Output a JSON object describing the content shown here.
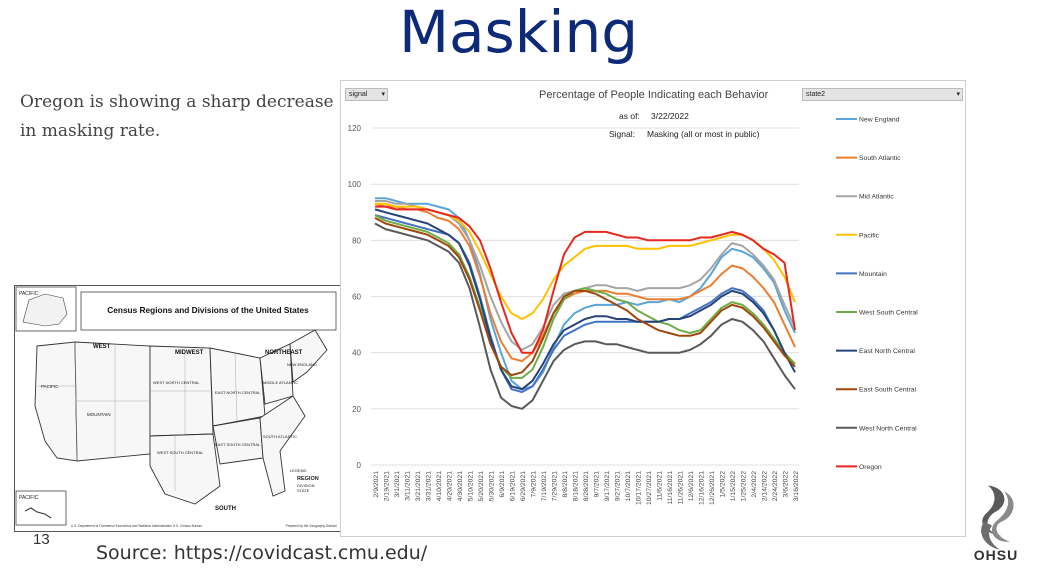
{
  "slide": {
    "title": "Masking",
    "text": "Oregon is showing a sharp decrease in masking rate.",
    "slide_number": "13",
    "source": "Source: https://covidcast.cmu.edu/",
    "logo_text": "OHSU"
  },
  "map": {
    "title": "Census Regions and Divisions of the United States",
    "regions": [
      "WEST",
      "MIDWEST",
      "NORTHEAST",
      "SOUTH"
    ],
    "divisions": [
      "PACIFIC",
      "MOUNTAIN",
      "WEST NORTH CENTRAL",
      "EAST NORTH CENTRAL",
      "NEW ENGLAND",
      "MIDDLE ATLANTIC",
      "SOUTH ATLANTIC",
      "EAST SOUTH CENTRAL",
      "WEST SOUTH CENTRAL"
    ],
    "inset_labels": [
      "PACIFIC",
      "PACIFIC"
    ],
    "legend": {
      "title": "LEGEND",
      "items": [
        "REGION",
        "DIVISION",
        "STATE"
      ]
    },
    "footer_left": "U.S. Department of Commerce Economics and Statistics Administration U.S. Census Bureau",
    "footer_right": "Prepared by the Geography Division"
  },
  "chart_ui": {
    "filter_left": "signal",
    "filter_right": "state2",
    "asof_label": "as of:",
    "asof_value": "3/22/2022",
    "signal_label": "Signal:",
    "signal_value": "Masking (all or most in public)"
  },
  "chart_data": {
    "type": "line",
    "title": "Percentage of People Indicating each Behavior",
    "ylim": [
      0,
      120
    ],
    "yticks": [
      0,
      20,
      40,
      60,
      80,
      100,
      120
    ],
    "grid": true,
    "legend_position": "right",
    "x": [
      "2/9/2021",
      "2/19/2021",
      "3/1/2021",
      "3/11/2021",
      "3/21/2021",
      "3/31/2021",
      "4/10/2021",
      "4/20/2021",
      "4/30/2021",
      "5/10/2021",
      "5/20/2021",
      "5/30/2021",
      "6/9/2021",
      "6/19/2021",
      "6/29/2021",
      "7/9/2021",
      "7/19/2021",
      "7/29/2021",
      "8/8/2021",
      "8/18/2021",
      "8/28/2021",
      "9/7/2021",
      "9/17/2021",
      "9/27/2021",
      "10/7/2021",
      "10/17/2021",
      "10/27/2021",
      "11/6/2021",
      "11/16/2021",
      "11/26/2021",
      "12/6/2021",
      "12/16/2021",
      "12/26/2021",
      "1/5/2022",
      "1/15/2022",
      "1/25/2022",
      "2/4/2022",
      "2/14/2022",
      "2/24/2022",
      "3/6/2022",
      "3/16/2022"
    ],
    "xtick_labels": [
      "2/9/2021",
      "2/19/2021",
      "3/1/2021",
      "3/11/2021",
      "3/21/2021",
      "3/31/2021",
      "4/10/2021",
      "4/20/2021",
      "4/30/2021",
      "5/10/2021",
      "5/20/2021",
      "5/30/2021",
      "6/9/2021",
      "6/19/2021",
      "6/29/2021",
      "7/9/2021",
      "7/19/2021",
      "7/29/2021",
      "8/8/2021",
      "8/18/2021",
      "8/28/2021",
      "9/7/2021",
      "9/17/2021",
      "9/27/2021",
      "10/7/2021",
      "10/17/2021",
      "10/27/2021",
      "11/6/2021",
      "11/16/2021",
      "11/26/2021",
      "12/6/2021",
      "12/16/2021",
      "12/26/2021",
      "1/5/2022",
      "1/15/2022",
      "1/25/2022",
      "2/4/2022",
      "2/14/2022",
      "2/24/2022",
      "3/6/2022",
      "3/16/2022"
    ],
    "series": [
      {
        "name": "New England",
        "color": "#5aa5d9",
        "values": [
          95,
          95,
          94,
          93,
          93,
          93,
          92,
          91,
          88,
          80,
          68,
          52,
          40,
          30,
          27,
          28,
          33,
          42,
          50,
          54,
          56,
          57,
          57,
          57,
          58,
          57,
          58,
          58,
          59,
          58,
          60,
          63,
          68,
          74,
          77,
          76,
          74,
          70,
          65,
          55,
          47
        ]
      },
      {
        "name": "South Atlantic",
        "color": "#ed7d31",
        "values": [
          93,
          92,
          92,
          91,
          91,
          90,
          88,
          87,
          84,
          78,
          67,
          54,
          44,
          38,
          37,
          40,
          46,
          54,
          59,
          61,
          62,
          62,
          62,
          61,
          61,
          60,
          59,
          59,
          59,
          59,
          60,
          62,
          64,
          68,
          71,
          70,
          67,
          63,
          58,
          50,
          42
        ]
      },
      {
        "name": "Mid Atlantic",
        "color": "#a5a5a5",
        "values": [
          94,
          94,
          93,
          93,
          92,
          91,
          90,
          89,
          86,
          80,
          71,
          60,
          51,
          44,
          41,
          43,
          49,
          57,
          61,
          62,
          63,
          64,
          64,
          63,
          63,
          62,
          63,
          63,
          63,
          63,
          64,
          66,
          70,
          75,
          79,
          78,
          75,
          71,
          66,
          57,
          49
        ]
      },
      {
        "name": "Pacific",
        "color": "#ffc000",
        "values": [
          93,
          93,
          92,
          92,
          92,
          91,
          90,
          89,
          87,
          83,
          76,
          68,
          60,
          54,
          52,
          54,
          59,
          66,
          71,
          74,
          77,
          78,
          78,
          78,
          78,
          77,
          77,
          77,
          78,
          78,
          78,
          79,
          80,
          81,
          82,
          82,
          80,
          77,
          73,
          67,
          58
        ]
      },
      {
        "name": "Mountain",
        "color": "#4472c4",
        "values": [
          89,
          88,
          87,
          86,
          85,
          84,
          83,
          82,
          79,
          72,
          60,
          46,
          34,
          27,
          26,
          28,
          34,
          41,
          46,
          48,
          50,
          51,
          51,
          51,
          51,
          51,
          51,
          51,
          52,
          52,
          54,
          56,
          58,
          61,
          63,
          62,
          59,
          55,
          48,
          40,
          35
        ]
      },
      {
        "name": "West South Central",
        "color": "#70ad47",
        "values": [
          89,
          87,
          86,
          85,
          84,
          83,
          81,
          79,
          75,
          67,
          56,
          44,
          35,
          31,
          31,
          34,
          42,
          52,
          59,
          62,
          63,
          62,
          61,
          59,
          58,
          55,
          53,
          51,
          50,
          48,
          47,
          48,
          52,
          56,
          58,
          57,
          54,
          50,
          45,
          40,
          36
        ]
      },
      {
        "name": "East North Central",
        "color": "#264478",
        "values": [
          91,
          90,
          89,
          88,
          87,
          86,
          84,
          82,
          79,
          71,
          59,
          45,
          34,
          28,
          27,
          30,
          36,
          43,
          48,
          50,
          52,
          53,
          53,
          52,
          52,
          51,
          51,
          51,
          52,
          52,
          53,
          55,
          57,
          60,
          62,
          61,
          58,
          54,
          48,
          40,
          33
        ]
      },
      {
        "name": "East South Central",
        "color": "#9e480e",
        "values": [
          88,
          86,
          85,
          84,
          83,
          82,
          80,
          78,
          74,
          66,
          55,
          43,
          35,
          32,
          33,
          37,
          45,
          54,
          60,
          62,
          62,
          61,
          59,
          57,
          55,
          52,
          50,
          48,
          47,
          46,
          46,
          47,
          51,
          55,
          57,
          56,
          53,
          49,
          44,
          39,
          35
        ]
      },
      {
        "name": "West North Central",
        "color": "#595959",
        "values": [
          86,
          84,
          83,
          82,
          81,
          80,
          78,
          76,
          72,
          63,
          49,
          34,
          24,
          21,
          20,
          23,
          30,
          37,
          41,
          43,
          44,
          44,
          43,
          43,
          42,
          41,
          40,
          40,
          40,
          40,
          41,
          43,
          46,
          50,
          52,
          51,
          48,
          44,
          38,
          32,
          27
        ]
      },
      {
        "name": "Oregon",
        "color": "#e6281f",
        "values": [
          92,
          92,
          91,
          91,
          91,
          91,
          90,
          89,
          88,
          85,
          80,
          70,
          58,
          47,
          40,
          40,
          48,
          62,
          75,
          81,
          83,
          83,
          83,
          82,
          81,
          81,
          80,
          80,
          80,
          80,
          80,
          81,
          81,
          82,
          83,
          82,
          80,
          77,
          75,
          72,
          48
        ]
      }
    ]
  }
}
